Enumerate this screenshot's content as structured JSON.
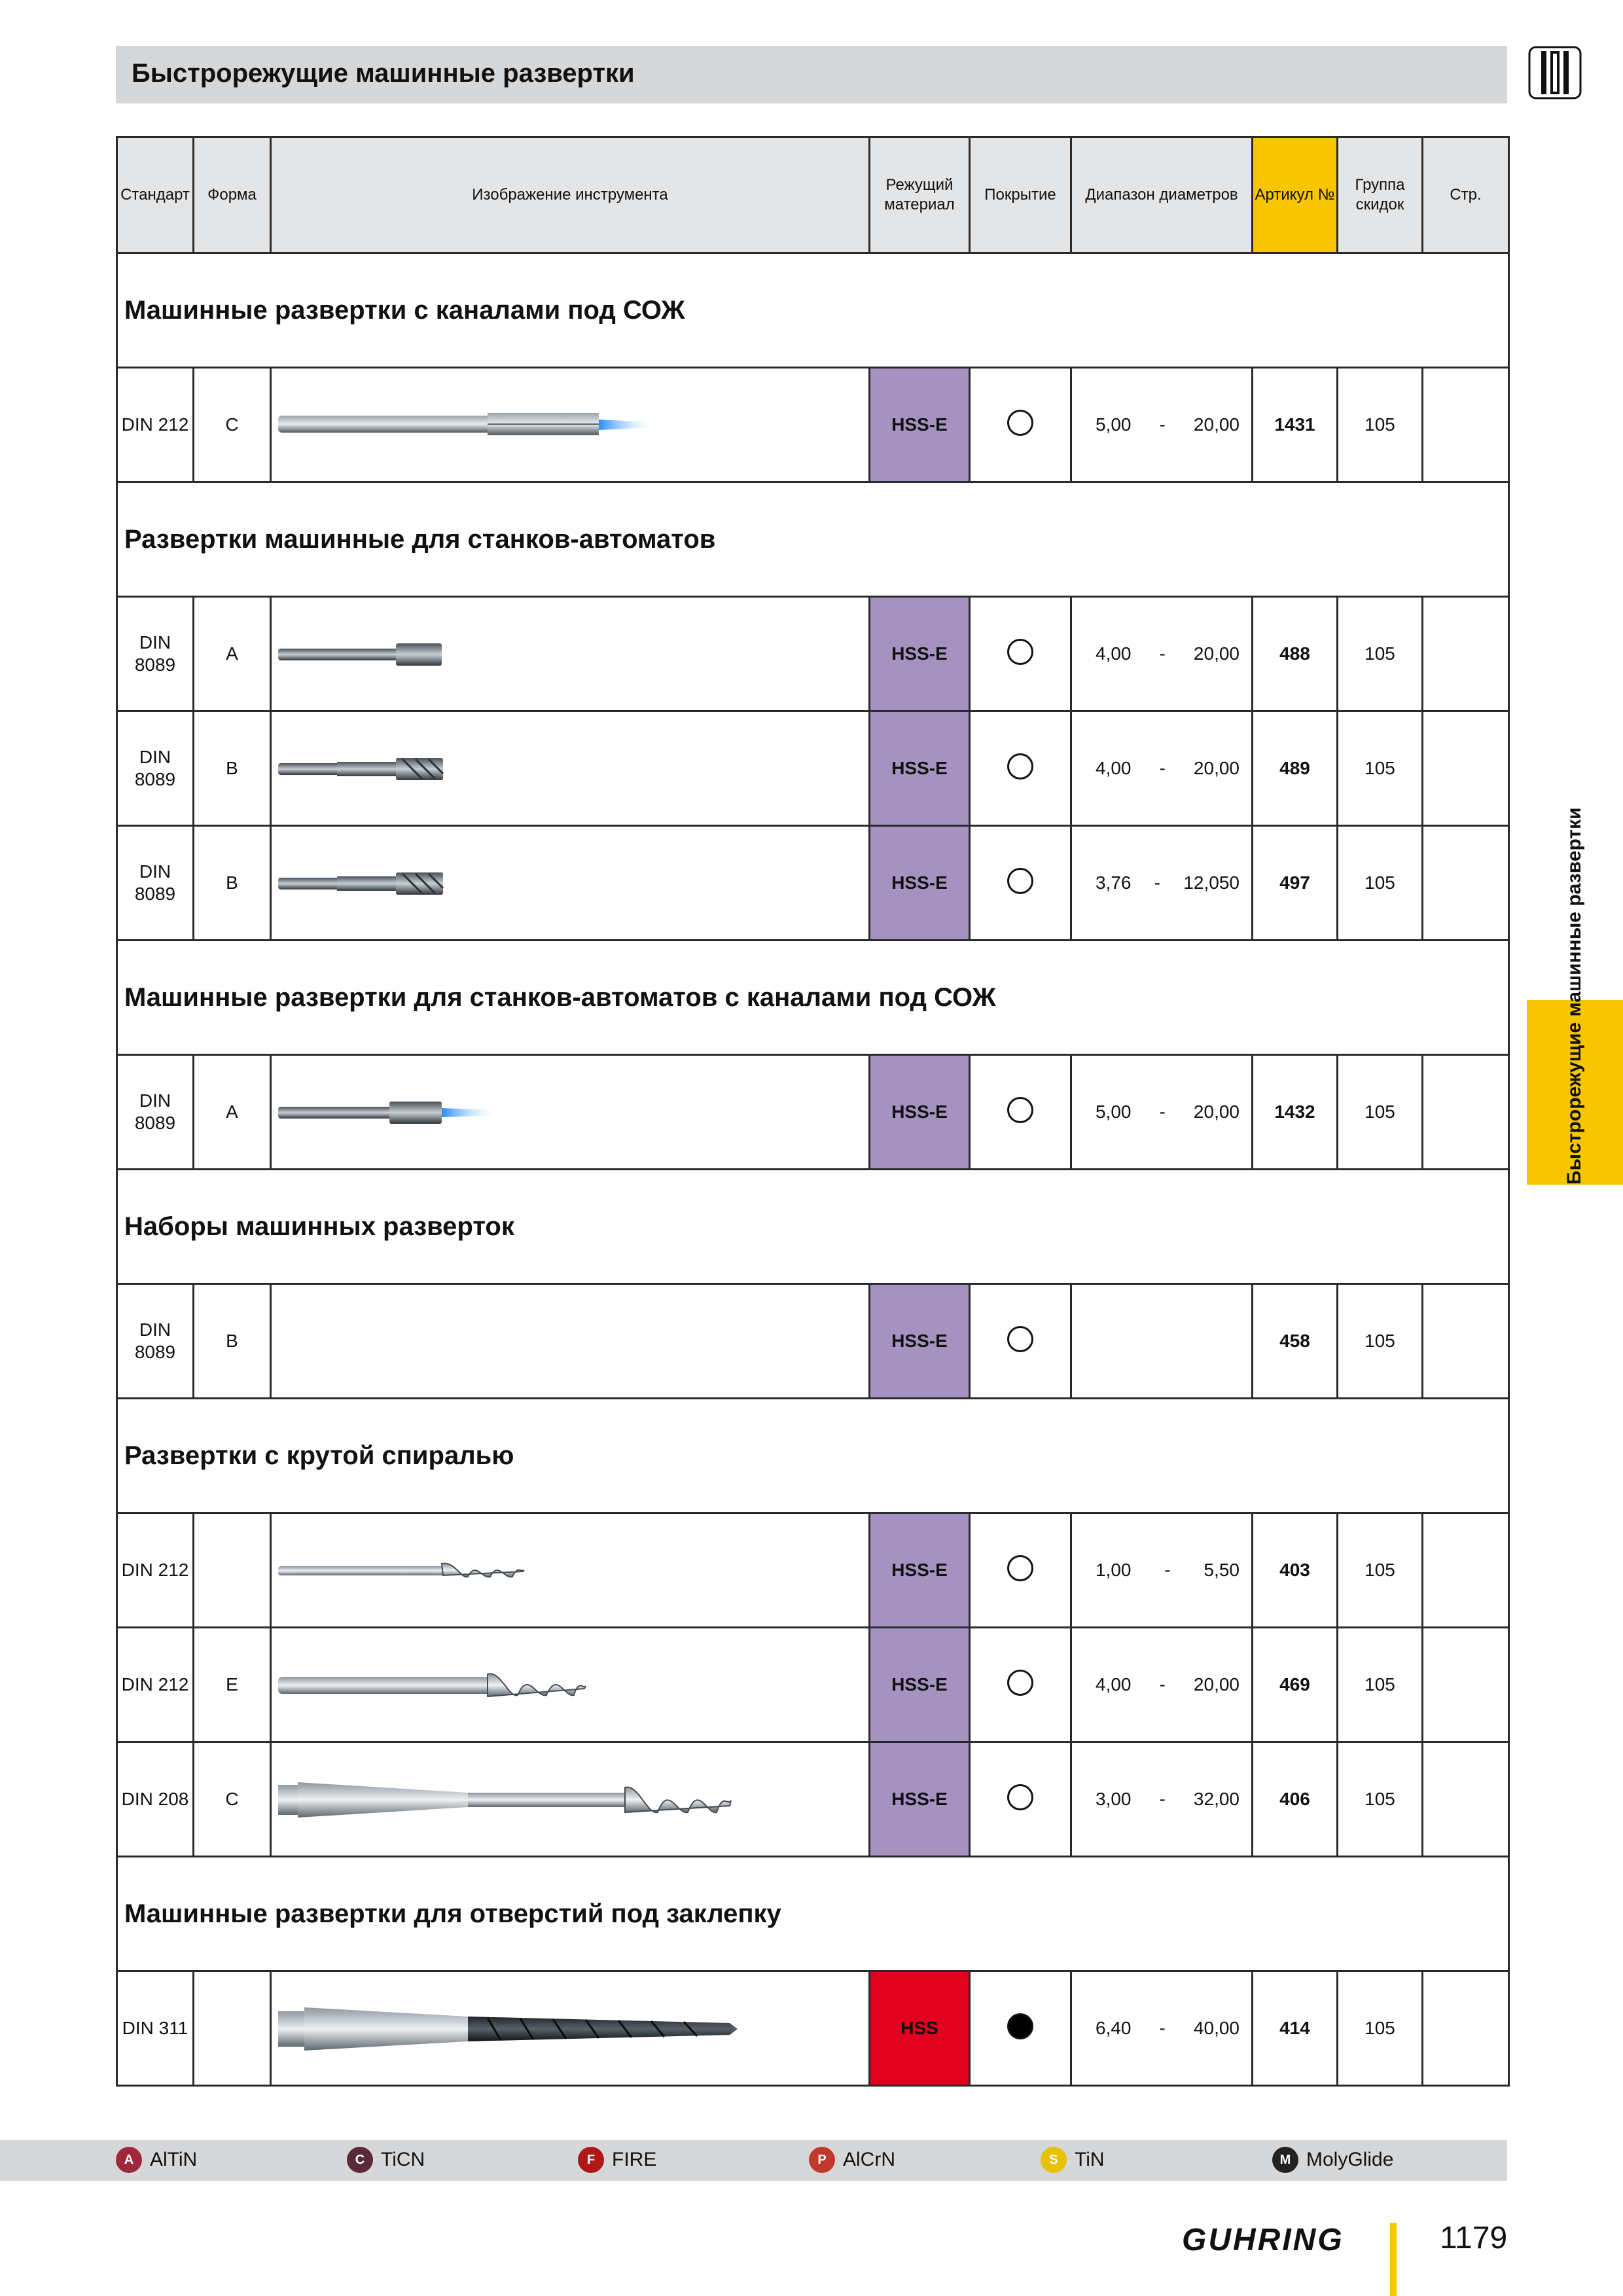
{
  "title": "Быстрорежущие машинные развертки",
  "side_tab": "Быстрорежущие машинные развертки",
  "headers": {
    "standard": "Стандарт",
    "form": "Форма",
    "image": "Изображение инструмента",
    "material": "Режущий материал",
    "coating": "Покрытие",
    "range": "Диапазон диаметров",
    "article": "Артикул №",
    "discount": "Группа скидок",
    "page": "Стр."
  },
  "sections": [
    {
      "title": "Машинные развертки с каналами под СОЖ",
      "rows": [
        {
          "std": "DIN 212",
          "form": "C",
          "tool": "reamer-coolant",
          "material": "HSS-E",
          "coat": "open",
          "from": "5,00",
          "dash": "-",
          "to": "20,00",
          "article": "1431",
          "discount": "105",
          "page": ""
        }
      ]
    },
    {
      "title": "Развертки машинные для станков-автоматов",
      "rows": [
        {
          "std": "DIN 8089",
          "form": "A",
          "tool": "reamer-short",
          "material": "HSS-E",
          "coat": "open",
          "from": "4,00",
          "dash": "-",
          "to": "20,00",
          "article": "488",
          "discount": "105",
          "page": ""
        },
        {
          "std": "DIN 8089",
          "form": "B",
          "tool": "reamer-short-spiral",
          "material": "HSS-E",
          "coat": "open",
          "from": "4,00",
          "dash": "-",
          "to": "20,00",
          "article": "489",
          "discount": "105",
          "page": ""
        },
        {
          "std": "DIN 8089",
          "form": "B",
          "tool": "reamer-short-spiral",
          "material": "HSS-E",
          "coat": "open",
          "from": "3,76",
          "dash": "-",
          "to": "12,050",
          "article": "497",
          "discount": "105",
          "page": ""
        }
      ]
    },
    {
      "title": "Машинные развертки для станков-автоматов с каналами под СОЖ",
      "rows": [
        {
          "std": "DIN 8089",
          "form": "A",
          "tool": "reamer-short-coolant",
          "material": "HSS-E",
          "coat": "open",
          "from": "5,00",
          "dash": "-",
          "to": "20,00",
          "article": "1432",
          "discount": "105",
          "page": ""
        }
      ]
    },
    {
      "title": "Наборы машинных разверток",
      "rows": [
        {
          "std": "DIN 8089",
          "form": "B",
          "tool": "none",
          "material": "HSS-E",
          "coat": "open",
          "from": "",
          "dash": "",
          "to": "",
          "article": "458",
          "discount": "105",
          "page": ""
        }
      ]
    },
    {
      "title": "Развертки с крутой спиралью",
      "rows": [
        {
          "std": "DIN 212",
          "form": "",
          "tool": "spiral-thin",
          "material": "HSS-E",
          "coat": "open",
          "from": "1,00",
          "dash": "-",
          "to": "5,50",
          "article": "403",
          "discount": "105",
          "page": ""
        },
        {
          "std": "DIN 212",
          "form": "E",
          "tool": "spiral-medium",
          "material": "HSS-E",
          "coat": "open",
          "from": "4,00",
          "dash": "-",
          "to": "20,00",
          "article": "469",
          "discount": "105",
          "page": ""
        },
        {
          "std": "DIN 208",
          "form": "C",
          "tool": "spiral-taper",
          "material": "HSS-E",
          "coat": "open",
          "from": "3,00",
          "dash": "-",
          "to": "32,00",
          "article": "406",
          "discount": "105",
          "page": ""
        }
      ]
    },
    {
      "title": "Машинные развертки для отверстий под заклепку",
      "rows": [
        {
          "std": "DIN 311",
          "form": "",
          "tool": "rivet-taper",
          "material": "HSS",
          "material_red": true,
          "coat": "filled",
          "from": "6,40",
          "dash": "-",
          "to": "40,00",
          "article": "414",
          "discount": "105",
          "page": ""
        }
      ]
    }
  ],
  "legend": [
    {
      "label": "AlTiN",
      "color": "#a0283c",
      "glyph": "A"
    },
    {
      "label": "TiCN",
      "color": "#5a2a38",
      "glyph": "C"
    },
    {
      "label": "FIRE",
      "color": "#b01818",
      "glyph": "F"
    },
    {
      "label": "AlCrN",
      "color": "#c0392b",
      "glyph": "P"
    },
    {
      "label": "TiN",
      "color": "#e6c200",
      "glyph": "S"
    },
    {
      "label": "MolyGlide",
      "color": "#222222",
      "glyph": "M"
    }
  ],
  "brand": "GUHRING",
  "page_number": "1179"
}
